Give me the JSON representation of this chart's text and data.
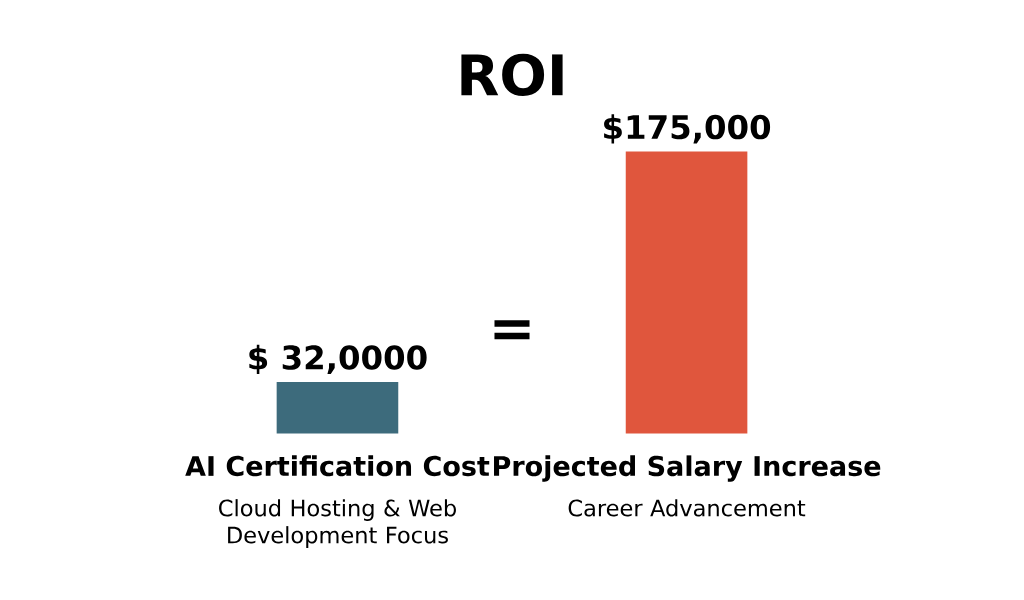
{
  "chart_data": {
    "type": "bar",
    "title": "ROI",
    "categories": [
      "AI Certification Cost",
      "Projected Salary Increase"
    ],
    "values": [
      32000,
      175000
    ],
    "value_labels": [
      "$ 32,0000",
      "$175,000"
    ],
    "colors": [
      "#3d6b7c",
      "#e0563d"
    ],
    "annotations": [
      "=",
      "Cloud Hosting & Web Development Focus",
      "Career Advancement"
    ]
  }
}
